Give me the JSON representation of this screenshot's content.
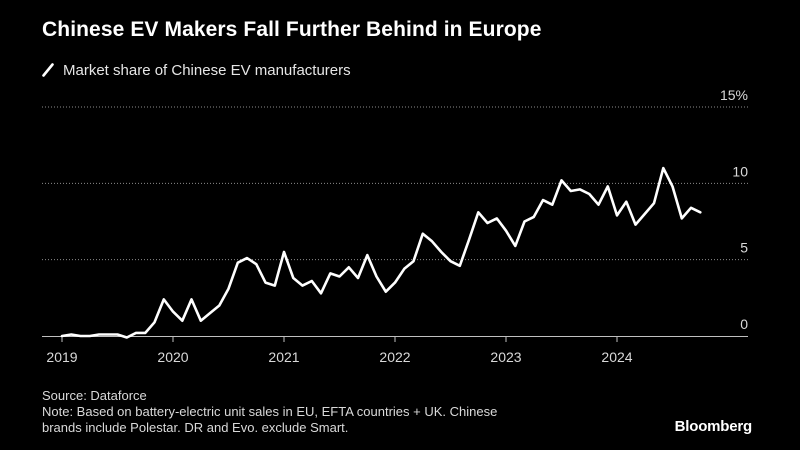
{
  "header": {
    "title": "Chinese EV Makers Fall Further Behind in Europe",
    "legend_label": "Market share of Chinese EV manufacturers"
  },
  "footer": {
    "source": "Source: Dataforce",
    "note_line1": "Note: Based on battery-electric unit sales in EU, EFTA countries + UK. Chinese",
    "note_line2": "brands include Polestar. DR and Evo. exclude Smart.",
    "brand": "Bloomberg"
  },
  "colors": {
    "background": "#000000",
    "line": "#ffffff",
    "grid": "#8c8c8c",
    "axis": "#bfbfbf",
    "text": "#ffffff",
    "muted": "#d9d9d9"
  },
  "chart_data": {
    "type": "line",
    "title": "Chinese EV Makers Fall Further Behind in Europe",
    "series": [
      {
        "name": "Market share of Chinese EV manufacturers",
        "x_start": "2019-01",
        "frequency": "monthly",
        "values": [
          0.0,
          0.1,
          0.0,
          0.0,
          0.1,
          0.1,
          0.1,
          -0.1,
          0.2,
          0.2,
          0.9,
          2.4,
          1.6,
          1.0,
          2.4,
          1.0,
          1.5,
          2.0,
          3.1,
          4.8,
          5.1,
          4.7,
          3.5,
          3.3,
          5.5,
          3.8,
          3.3,
          3.6,
          2.8,
          4.1,
          3.9,
          4.5,
          3.8,
          5.3,
          3.9,
          2.9,
          3.5,
          4.4,
          4.9,
          6.7,
          6.2,
          5.5,
          4.9,
          4.6,
          6.3,
          8.1,
          7.4,
          7.7,
          6.9,
          5.9,
          7.5,
          7.8,
          8.9,
          8.6,
          10.2,
          9.5,
          9.6,
          9.3,
          8.6,
          9.8,
          7.9,
          8.8,
          7.3,
          8.0,
          8.7,
          11.0,
          9.8,
          7.7,
          8.4,
          8.1
        ]
      }
    ],
    "x_ticks": [
      "2019",
      "2020",
      "2021",
      "2022",
      "2023",
      "2024"
    ],
    "y_ticks": [
      "0",
      "5",
      "10",
      "15%"
    ],
    "y_tick_values": [
      0,
      5,
      10,
      15
    ],
    "ylim": [
      0,
      15
    ],
    "xlim": [
      "2019-01",
      "2025-06"
    ],
    "xlabel": "",
    "ylabel": "",
    "grid": true
  }
}
